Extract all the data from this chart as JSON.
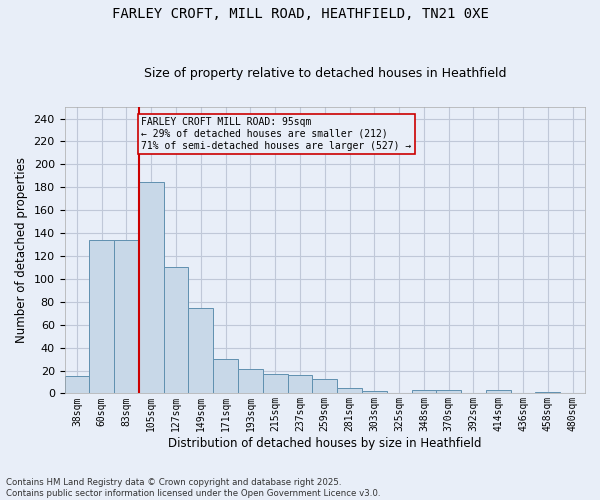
{
  "title1": "FARLEY CROFT, MILL ROAD, HEATHFIELD, TN21 0XE",
  "title2": "Size of property relative to detached houses in Heathfield",
  "xlabel": "Distribution of detached houses by size in Heathfield",
  "ylabel": "Number of detached properties",
  "categories": [
    "38sqm",
    "60sqm",
    "83sqm",
    "105sqm",
    "127sqm",
    "149sqm",
    "171sqm",
    "193sqm",
    "215sqm",
    "237sqm",
    "259sqm",
    "281sqm",
    "303sqm",
    "325sqm",
    "348sqm",
    "370sqm",
    "392sqm",
    "414sqm",
    "436sqm",
    "458sqm",
    "480sqm"
  ],
  "values": [
    15,
    134,
    134,
    185,
    110,
    75,
    30,
    21,
    17,
    16,
    13,
    5,
    2,
    0,
    3,
    3,
    0,
    3,
    0,
    1,
    0
  ],
  "bar_color": "#c8d8e8",
  "bar_edge_color": "#6090b0",
  "grid_color": "#c0c8d8",
  "background_color": "#e8eef8",
  "vline_color": "#cc0000",
  "annotation_text": "FARLEY CROFT MILL ROAD: 95sqm\n← 29% of detached houses are smaller (212)\n71% of semi-detached houses are larger (527) →",
  "annotation_box_color": "#cc0000",
  "ylim": [
    0,
    250
  ],
  "yticks": [
    0,
    20,
    40,
    60,
    80,
    100,
    120,
    140,
    160,
    180,
    200,
    220,
    240
  ],
  "footnote": "Contains HM Land Registry data © Crown copyright and database right 2025.\nContains public sector information licensed under the Open Government Licence v3.0.",
  "title_fontsize": 10,
  "subtitle_fontsize": 9,
  "label_fontsize": 8.5
}
